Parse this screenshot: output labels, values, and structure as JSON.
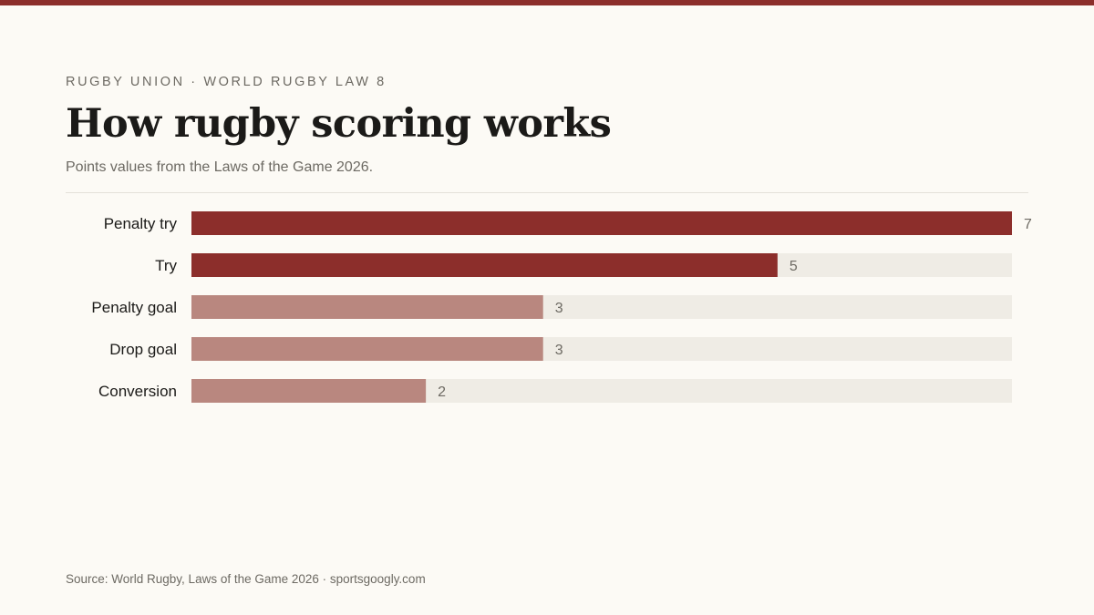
{
  "header": {
    "kicker": "RUGBY UNION · WORLD RUGBY LAW 8",
    "title": "How rugby scoring works",
    "subtitle": "Points values from the Laws of the Game 2026."
  },
  "footer": {
    "source": "Source: World Rugby, Laws of the Game 2026 · sportsgoogly.com"
  },
  "colors": {
    "background": "#fcfaf5",
    "accent": "#8c2e2b",
    "secondary_bar": "#b9877f",
    "track": "#efece5",
    "label_text": "#1b1a18",
    "value_text": "#6d6a63"
  },
  "chart_data": {
    "type": "bar",
    "orientation": "horizontal",
    "categories": [
      "Penalty try",
      "Try",
      "Penalty goal",
      "Drop goal",
      "Conversion"
    ],
    "values": [
      7,
      5,
      3,
      3,
      2
    ],
    "highlighted": [
      true,
      true,
      false,
      false,
      false
    ],
    "xlim": [
      0,
      7
    ],
    "grid": false,
    "legend": "none"
  }
}
